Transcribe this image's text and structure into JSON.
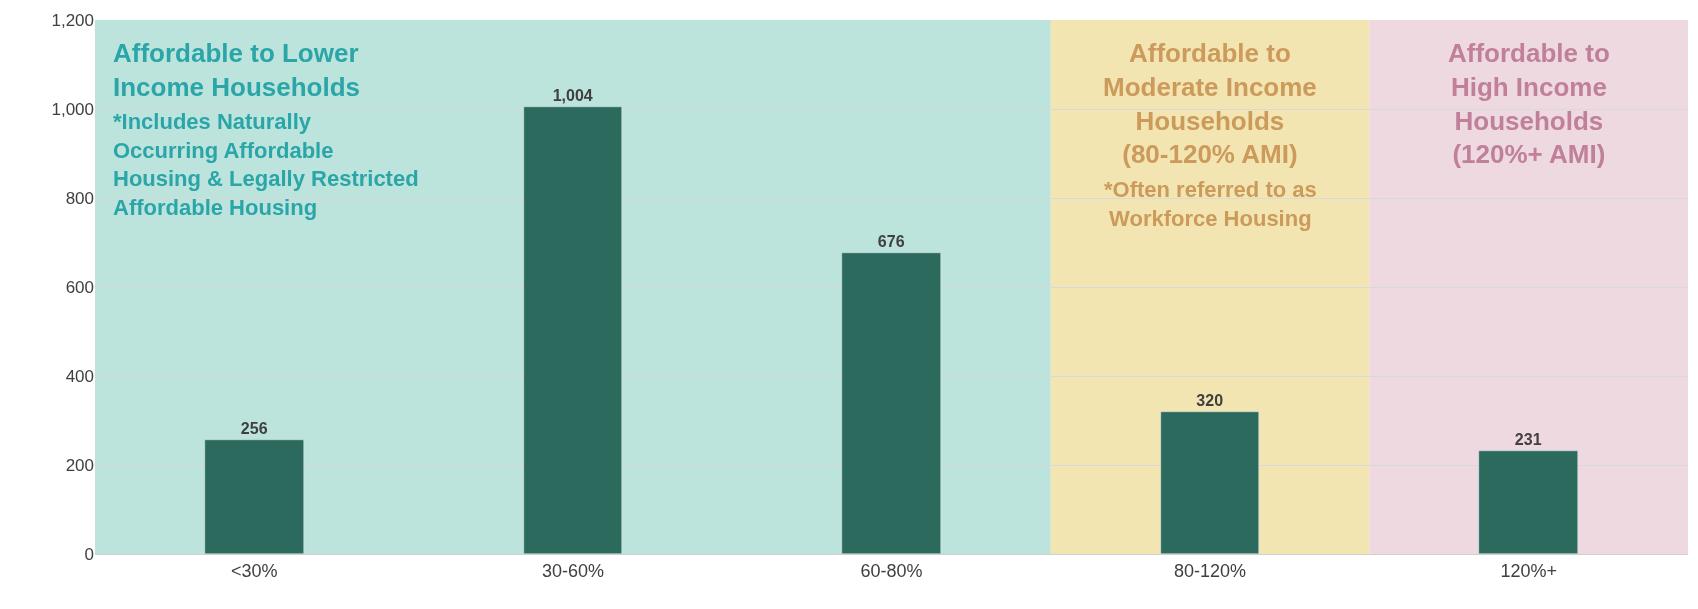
{
  "chart_data": {
    "type": "bar",
    "categories": [
      "<30%",
      "30-60%",
      "60-80%",
      "80-120%",
      "120%+"
    ],
    "values": [
      256,
      1004,
      676,
      320,
      231
    ],
    "value_labels": [
      "256",
      "1,004",
      "676",
      "320",
      "231"
    ],
    "color": "#2b6a5d",
    "ylim": [
      0,
      1200
    ],
    "yticks": [
      0,
      {
        "value": 200,
        "label": "200"
      },
      {
        "value": 400,
        "label": "400"
      },
      {
        "value": 600,
        "label": "600"
      },
      {
        "value": 800,
        "label": "800"
      },
      {
        "value": 1000,
        "label": "1,000"
      },
      {
        "value": 1200,
        "label": "1,200"
      }
    ],
    "grid": "y",
    "bands": [
      {
        "axis": "x",
        "from": "<30%",
        "to": "60-80%",
        "label": "Affordable to Lower\nIncome Households",
        "color": "#bde4dc"
      },
      {
        "axis": "x",
        "from": "80-120%",
        "to": "80-120%",
        "label": "Affordable to\nModerate Income\nHouseholds\n(80-120% AMI)",
        "color": "#f2e5b2"
      },
      {
        "axis": "x",
        "from": "120%+",
        "to": "120%+",
        "label": "Affordable to\nHigh Income\nHouseholds\n(120%+ AMI)",
        "color": "#eed9e0"
      }
    ],
    "annotations": [
      "*Includes Naturally\nOccurring Affordable\nHousing & Legally Restricted\nAffordable Housing",
      "*Often referred to as\nWorkforce Housing"
    ]
  }
}
